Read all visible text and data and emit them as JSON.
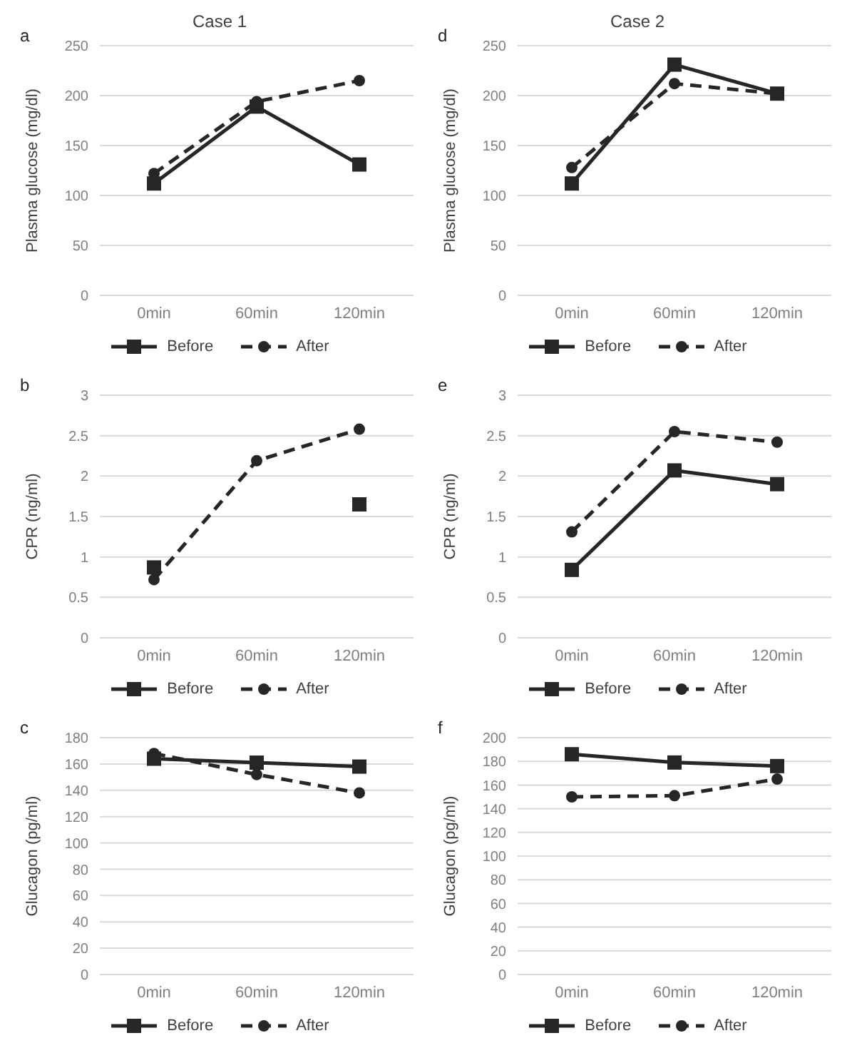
{
  "chart_data": [
    {
      "type": "line",
      "title": "Case 1",
      "annotations": [
        "a"
      ],
      "ylabel": "Plasma glucose (mg/dl)",
      "categories": [
        "0min",
        "60min",
        "120min"
      ],
      "ylim": [
        0,
        250
      ],
      "yticks": [
        0,
        50,
        100,
        150,
        200,
        250
      ],
      "grid": "y",
      "legend": "bottom",
      "series": [
        {
          "name": "Before",
          "color": "#262626",
          "marker": "square",
          "line_style": "solid",
          "values": [
            112,
            189,
            131
          ]
        },
        {
          "name": "After",
          "color": "#262626",
          "marker": "circle",
          "line_style": "dashed",
          "values": [
            122,
            194,
            215
          ]
        }
      ]
    },
    {
      "type": "line",
      "annotations": [
        "b"
      ],
      "ylabel": "CPR (ng/ml)",
      "categories": [
        "0min",
        "60min",
        "120min"
      ],
      "ylim": [
        0,
        3
      ],
      "yticks": [
        0,
        0.5,
        1,
        1.5,
        2,
        2.5,
        3
      ],
      "grid": "y",
      "legend": "bottom",
      "series": [
        {
          "name": "Before",
          "color": "#262626",
          "marker": "square",
          "line_style": "solid",
          "values": [
            0.87,
            null,
            1.65
          ]
        },
        {
          "name": "After",
          "color": "#262626",
          "marker": "circle",
          "line_style": "dashed",
          "values": [
            0.72,
            2.19,
            2.58
          ]
        }
      ]
    },
    {
      "type": "line",
      "annotations": [
        "c"
      ],
      "ylabel": "Glucagon (pg/ml)",
      "categories": [
        "0min",
        "60min",
        "120min"
      ],
      "ylim": [
        0,
        180
      ],
      "yticks": [
        0,
        20,
        40,
        60,
        80,
        100,
        120,
        140,
        160,
        180
      ],
      "grid": "y",
      "legend": "bottom",
      "series": [
        {
          "name": "Before",
          "color": "#262626",
          "marker": "square",
          "line_style": "solid",
          "values": [
            164,
            161,
            158
          ]
        },
        {
          "name": "After",
          "color": "#262626",
          "marker": "circle",
          "line_style": "dashed",
          "values": [
            168,
            152,
            138
          ]
        }
      ]
    },
    {
      "type": "line",
      "title": "Case 2",
      "annotations": [
        "d"
      ],
      "ylabel": "Plasma glucose (mg/dl)",
      "categories": [
        "0min",
        "60min",
        "120min"
      ],
      "ylim": [
        0,
        250
      ],
      "yticks": [
        0,
        50,
        100,
        150,
        200,
        250
      ],
      "grid": "y",
      "legend": "bottom",
      "series": [
        {
          "name": "Before",
          "color": "#262626",
          "marker": "square",
          "line_style": "solid",
          "values": [
            112,
            231,
            202
          ]
        },
        {
          "name": "After",
          "color": "#262626",
          "marker": "circle",
          "line_style": "dashed",
          "values": [
            128,
            212,
            202
          ]
        }
      ]
    },
    {
      "type": "line",
      "annotations": [
        "e"
      ],
      "ylabel": "CPR (ng/ml)",
      "categories": [
        "0min",
        "60min",
        "120min"
      ],
      "ylim": [
        0,
        3
      ],
      "yticks": [
        0,
        0.5,
        1,
        1.5,
        2,
        2.5,
        3
      ],
      "grid": "y",
      "legend": "bottom",
      "series": [
        {
          "name": "Before",
          "color": "#262626",
          "marker": "square",
          "line_style": "solid",
          "values": [
            0.84,
            2.07,
            1.9
          ]
        },
        {
          "name": "After",
          "color": "#262626",
          "marker": "circle",
          "line_style": "dashed",
          "values": [
            1.31,
            2.55,
            2.42
          ]
        }
      ]
    },
    {
      "type": "line",
      "annotations": [
        "f"
      ],
      "ylabel": "Glucagon (pg/ml)",
      "categories": [
        "0min",
        "60min",
        "120min"
      ],
      "ylim": [
        0,
        200
      ],
      "yticks": [
        0,
        20,
        40,
        60,
        80,
        100,
        120,
        140,
        160,
        180,
        200
      ],
      "grid": "y",
      "legend": "bottom",
      "series": [
        {
          "name": "Before",
          "color": "#262626",
          "marker": "square",
          "line_style": "solid",
          "values": [
            186,
            179,
            176
          ]
        },
        {
          "name": "After",
          "color": "#262626",
          "marker": "circle",
          "line_style": "dashed",
          "values": [
            150,
            151,
            165
          ]
        }
      ]
    }
  ]
}
